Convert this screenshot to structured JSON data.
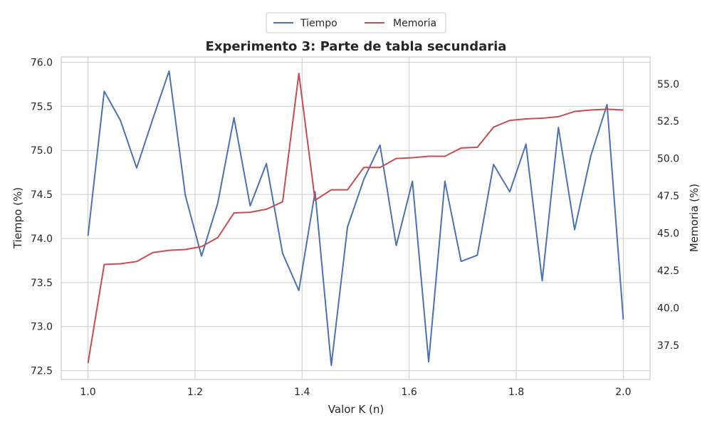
{
  "chart_data": {
    "type": "line",
    "title": "Experimento 3: Parte de tabla secundaria",
    "xlabel": "Valor K (n)",
    "ylabel_left": "Tiempo (%)",
    "ylabel_right": "Memoria (%)",
    "xlim": [
      0.95,
      2.05
    ],
    "ylim_left": [
      72.4,
      76.06
    ],
    "ylim_right": [
      35.2,
      56.8
    ],
    "xticks": [
      "1.0",
      "1.2",
      "1.4",
      "1.6",
      "1.8",
      "2.0"
    ],
    "yticks_left": [
      "72.5",
      "73.0",
      "73.5",
      "74.0",
      "74.5",
      "75.0",
      "75.5",
      "76.0"
    ],
    "yticks_right": [
      "37.5",
      "40.0",
      "42.5",
      "45.0",
      "47.5",
      "50.0",
      "52.5",
      "55.0"
    ],
    "grid": true,
    "legend_position": "top-center, above plot",
    "x": [
      1.0,
      1.0303,
      1.0606,
      1.0909,
      1.1212,
      1.1515,
      1.1818,
      1.2121,
      1.2424,
      1.2727,
      1.303,
      1.3333,
      1.3636,
      1.3939,
      1.4242,
      1.4545,
      1.4848,
      1.5152,
      1.5455,
      1.5758,
      1.6061,
      1.6364,
      1.6667,
      1.697,
      1.7273,
      1.7576,
      1.7879,
      1.8182,
      1.8485,
      1.8788,
      1.9091,
      1.9394,
      1.9697,
      2.0
    ],
    "series": [
      {
        "name": "Tiempo",
        "axis": "left",
        "color": "#4c72b0",
        "values": [
          74.03,
          75.67,
          75.34,
          74.8,
          75.36,
          75.9,
          74.49,
          73.8,
          74.4,
          75.37,
          74.37,
          74.85,
          73.83,
          73.41,
          74.53,
          72.56,
          74.13,
          74.67,
          75.06,
          73.92,
          74.65,
          72.6,
          74.65,
          73.74,
          73.81,
          74.84,
          74.53,
          75.07,
          73.52,
          75.26,
          74.1,
          74.94,
          75.52,
          73.08
        ]
      },
      {
        "name": "Memoria",
        "axis": "right",
        "color": "#c44e52",
        "values": [
          36.3,
          42.9,
          42.95,
          43.1,
          43.7,
          43.85,
          43.9,
          44.1,
          44.7,
          46.35,
          46.4,
          46.6,
          47.1,
          55.7,
          47.2,
          47.9,
          47.9,
          49.4,
          49.4,
          50.0,
          50.05,
          50.15,
          50.15,
          50.7,
          50.75,
          52.1,
          52.55,
          52.65,
          52.7,
          52.8,
          53.15,
          53.25,
          53.3,
          53.25
        ]
      }
    ]
  }
}
